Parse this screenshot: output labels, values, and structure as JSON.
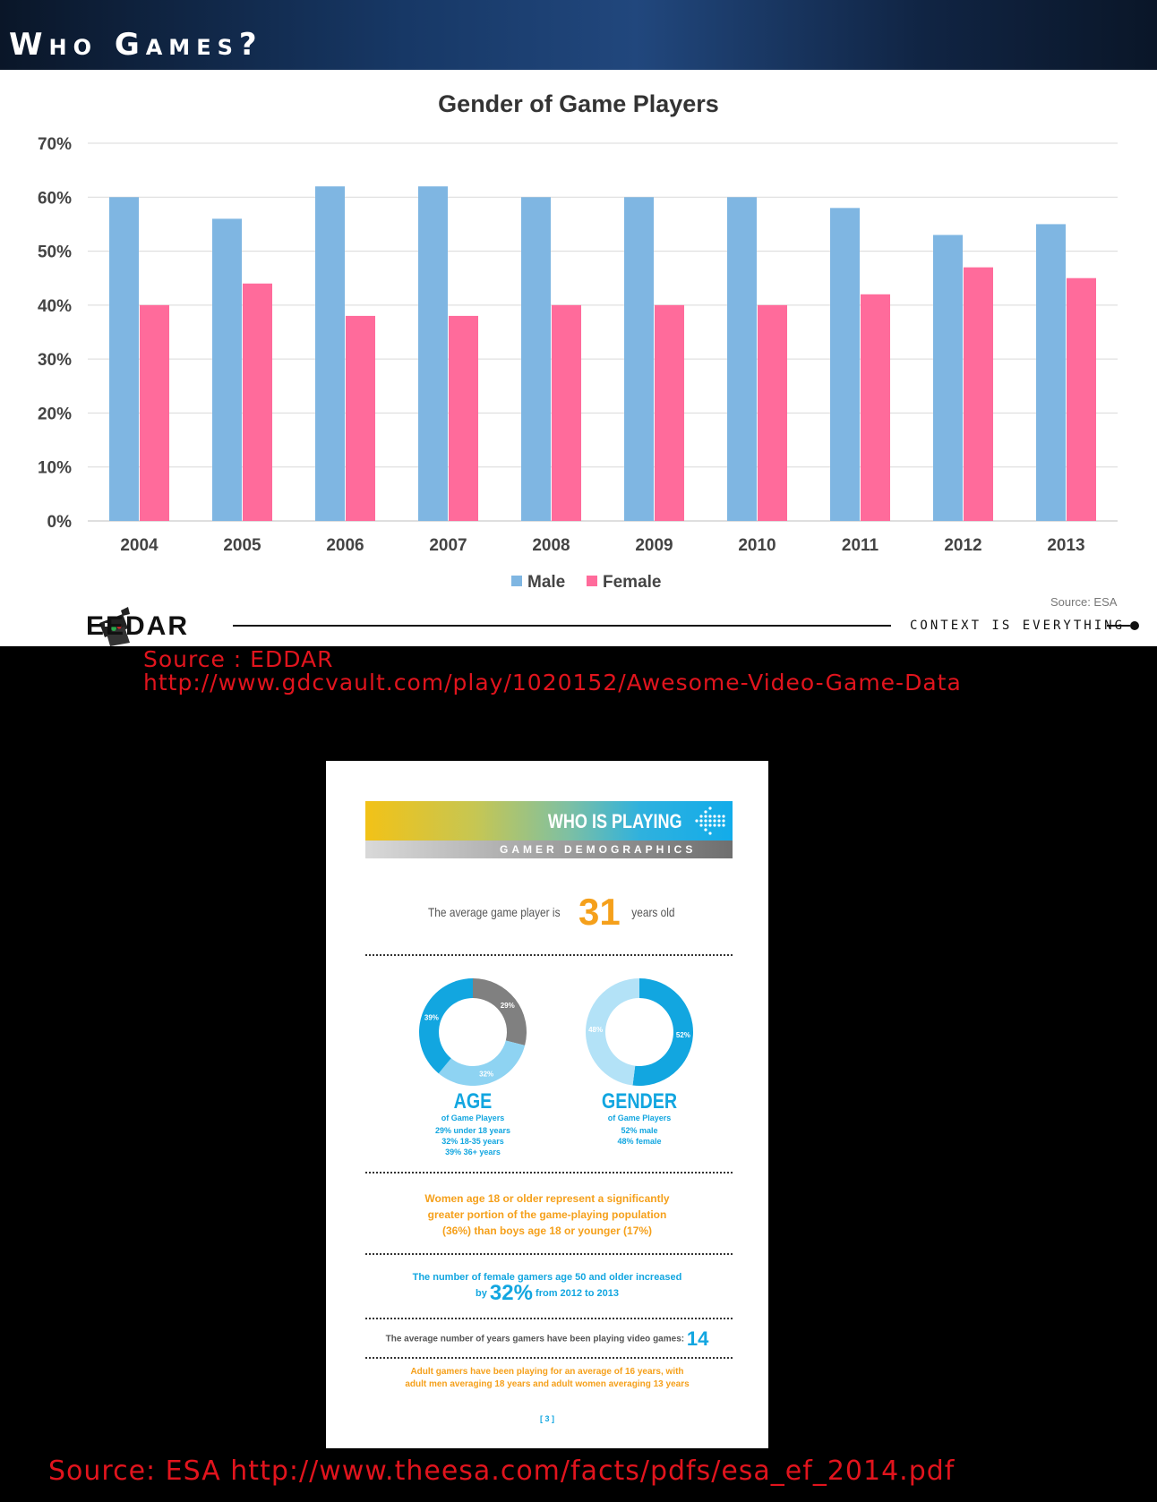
{
  "header": {
    "title": "Who Games?"
  },
  "chart_data": {
    "type": "bar",
    "title": "Gender of Game Players",
    "categories": [
      "2004",
      "2005",
      "2006",
      "2007",
      "2008",
      "2009",
      "2010",
      "2011",
      "2012",
      "2013"
    ],
    "series": [
      {
        "name": "Male",
        "values": [
          60,
          56,
          62,
          62,
          60,
          60,
          60,
          58,
          53,
          55
        ],
        "color": "#7fb6e2"
      },
      {
        "name": "Female",
        "values": [
          40,
          44,
          38,
          38,
          40,
          40,
          40,
          42,
          47,
          45
        ],
        "color": "#ff6b9b"
      }
    ],
    "ylim": [
      0,
      70
    ],
    "yticks": [
      0,
      10,
      20,
      30,
      40,
      50,
      60,
      70
    ],
    "ytick_labels": [
      "0%",
      "10%",
      "20%",
      "30%",
      "40%",
      "50%",
      "60%",
      "70%"
    ],
    "grid": true,
    "legend": "bottom-center",
    "source": "Source: ESA"
  },
  "footer": {
    "logo_text": "EEDAR",
    "tagline": "CONTEXT IS EVERYTHING"
  },
  "sources": {
    "line1": "Source : EDDAR",
    "line2": "http://www.gdcvault.com/play/1020152/Awesome-Video-Game-Data",
    "line3": "Source: ESA http://www.theesa.com/facts/pdfs/esa_ef_2014.pdf"
  },
  "doc": {
    "title": "WHO IS PLAYING",
    "subtitle": "GAMER DEMOGRAPHICS",
    "avg_prefix": "The average game player is",
    "avg_value": "31",
    "avg_suffix": "years old",
    "age": {
      "title": "AGE",
      "sub": "of Game Players",
      "labels": [
        "29%",
        "32%",
        "39%"
      ],
      "values": [
        29,
        32,
        39
      ],
      "colors": [
        "#808080",
        "#8ed3f2",
        "#12a6e0"
      ],
      "lines": [
        "29% under 18 years",
        "32% 18-35 years",
        "39% 36+ years"
      ]
    },
    "gender": {
      "title": "GENDER",
      "sub": "of Game Players",
      "labels": [
        "52%",
        "48%"
      ],
      "values": [
        52,
        48
      ],
      "colors": [
        "#12a6e0",
        "#b3e2f7"
      ],
      "lines": [
        "52% male",
        "48% female"
      ]
    },
    "women_text": [
      "Women age 18 or older represent a significantly",
      "greater portion of the game-playing population",
      "(36%) than boys age 18 or younger (17%)"
    ],
    "female50_line1": "The number of female gamers age 50 and older increased",
    "female50_by": "by",
    "female50_value": "32%",
    "female50_rest": "from 2012 to 2013",
    "years_text": "The average number of years gamers have been playing video games:",
    "years_value": "14",
    "adult_text": [
      "Adult gamers have been playing for an average of 16 years, with",
      "adult men averaging 18 years and adult women averaging 13 years"
    ],
    "page": "[ 3 ]"
  }
}
